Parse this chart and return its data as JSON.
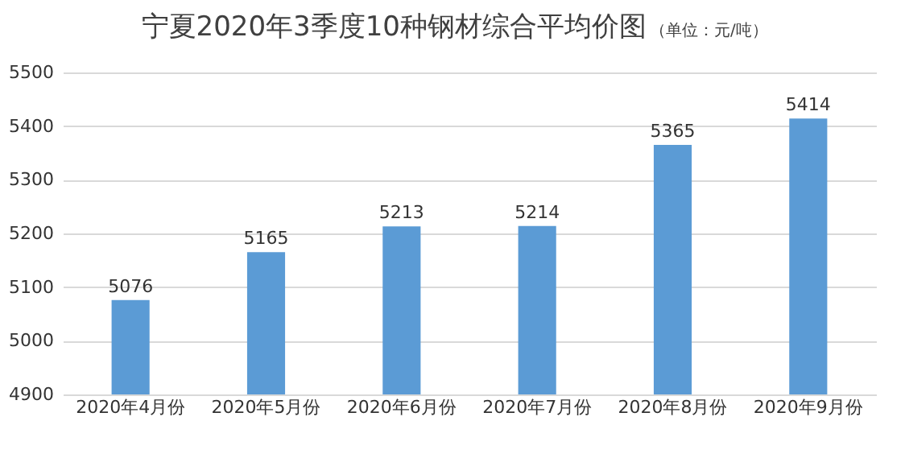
{
  "chart_data": {
    "type": "bar",
    "title": "宁夏2020年3季度10种钢材综合平均价图",
    "subtitle": "（单位：元/吨）",
    "categories": [
      "2020年4月份",
      "2020年5月份",
      "2020年6月份",
      "2020年7月份",
      "2020年8月份",
      "2020年9月份"
    ],
    "values": [
      5076,
      5165,
      5213,
      5214,
      5365,
      5414
    ],
    "color": "#5b9bd5",
    "ylim": [
      4900,
      5500
    ],
    "yticks": [
      4900,
      5000,
      5100,
      5200,
      5300,
      5400,
      5500
    ],
    "grid": "y",
    "data_labels": true
  }
}
